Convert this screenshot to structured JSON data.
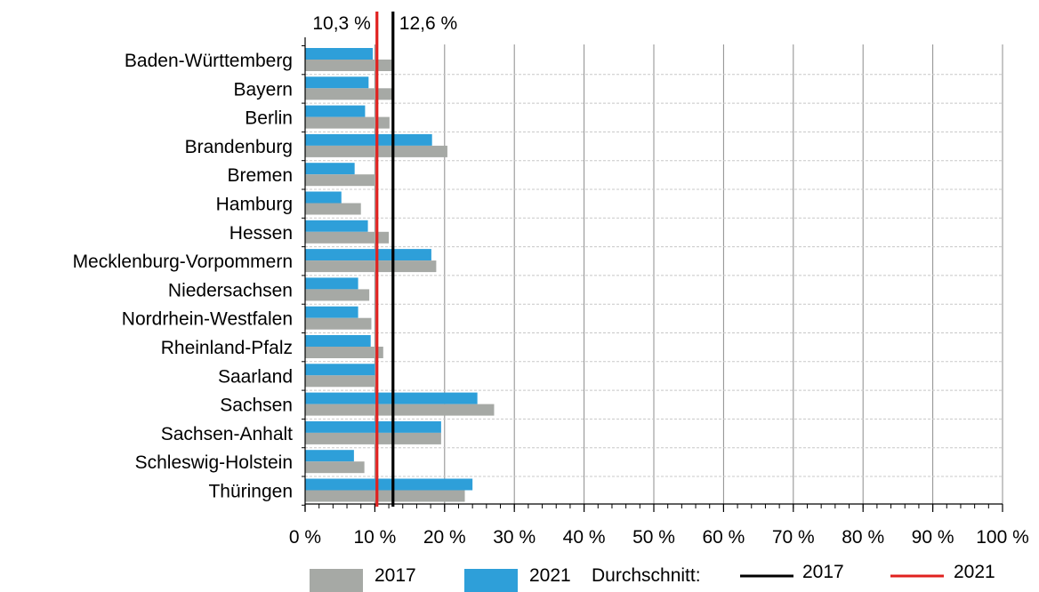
{
  "chart_data": {
    "type": "bar",
    "orientation": "horizontal",
    "categories": [
      "Baden-Württemberg",
      "Bayern",
      "Berlin",
      "Brandenburg",
      "Bremen",
      "Hamburg",
      "Hessen",
      "Mecklenburg-Vorpommern",
      "Niedersachsen",
      "Nordrhein-Westfalen",
      "Rheinland-Pfalz",
      "Saarland",
      "Sachsen",
      "Sachsen-Anhalt",
      "Schleswig-Holstein",
      "Thüringen"
    ],
    "series": [
      {
        "name": "2021",
        "color": "#2e9fd9",
        "values": [
          9.7,
          9.1,
          8.6,
          18.2,
          7.1,
          5.2,
          9.0,
          18.1,
          7.6,
          7.6,
          9.4,
          10.0,
          24.7,
          19.5,
          7.0,
          24.0
        ]
      },
      {
        "name": "2017",
        "color": "#a6a9a5",
        "values": [
          12.4,
          12.5,
          12.1,
          20.4,
          10.1,
          8.0,
          12.0,
          18.8,
          9.2,
          9.5,
          11.2,
          10.1,
          27.1,
          19.5,
          8.5,
          22.9
        ]
      }
    ],
    "reference_lines": [
      {
        "name": "2017",
        "value": 12.6,
        "label": "12,6 %",
        "color": "#000000"
      },
      {
        "name": "2021",
        "value": 10.3,
        "label": "10,3 %",
        "color": "#e0211f"
      }
    ],
    "xlim": [
      0,
      100
    ],
    "xticks": [
      "0 %",
      "10 %",
      "20 %",
      "30 %",
      "40 %",
      "50 %",
      "60 %",
      "70 %",
      "80 %",
      "90 %",
      "100 %"
    ],
    "xlabel": "",
    "ylabel": "",
    "title": "",
    "grid": true,
    "legend": {
      "placement": "bottom",
      "bar_items": [
        "2017",
        "2021"
      ],
      "lines_caption": "Durchschnitt:",
      "line_items": [
        "2017",
        "2021"
      ]
    }
  }
}
